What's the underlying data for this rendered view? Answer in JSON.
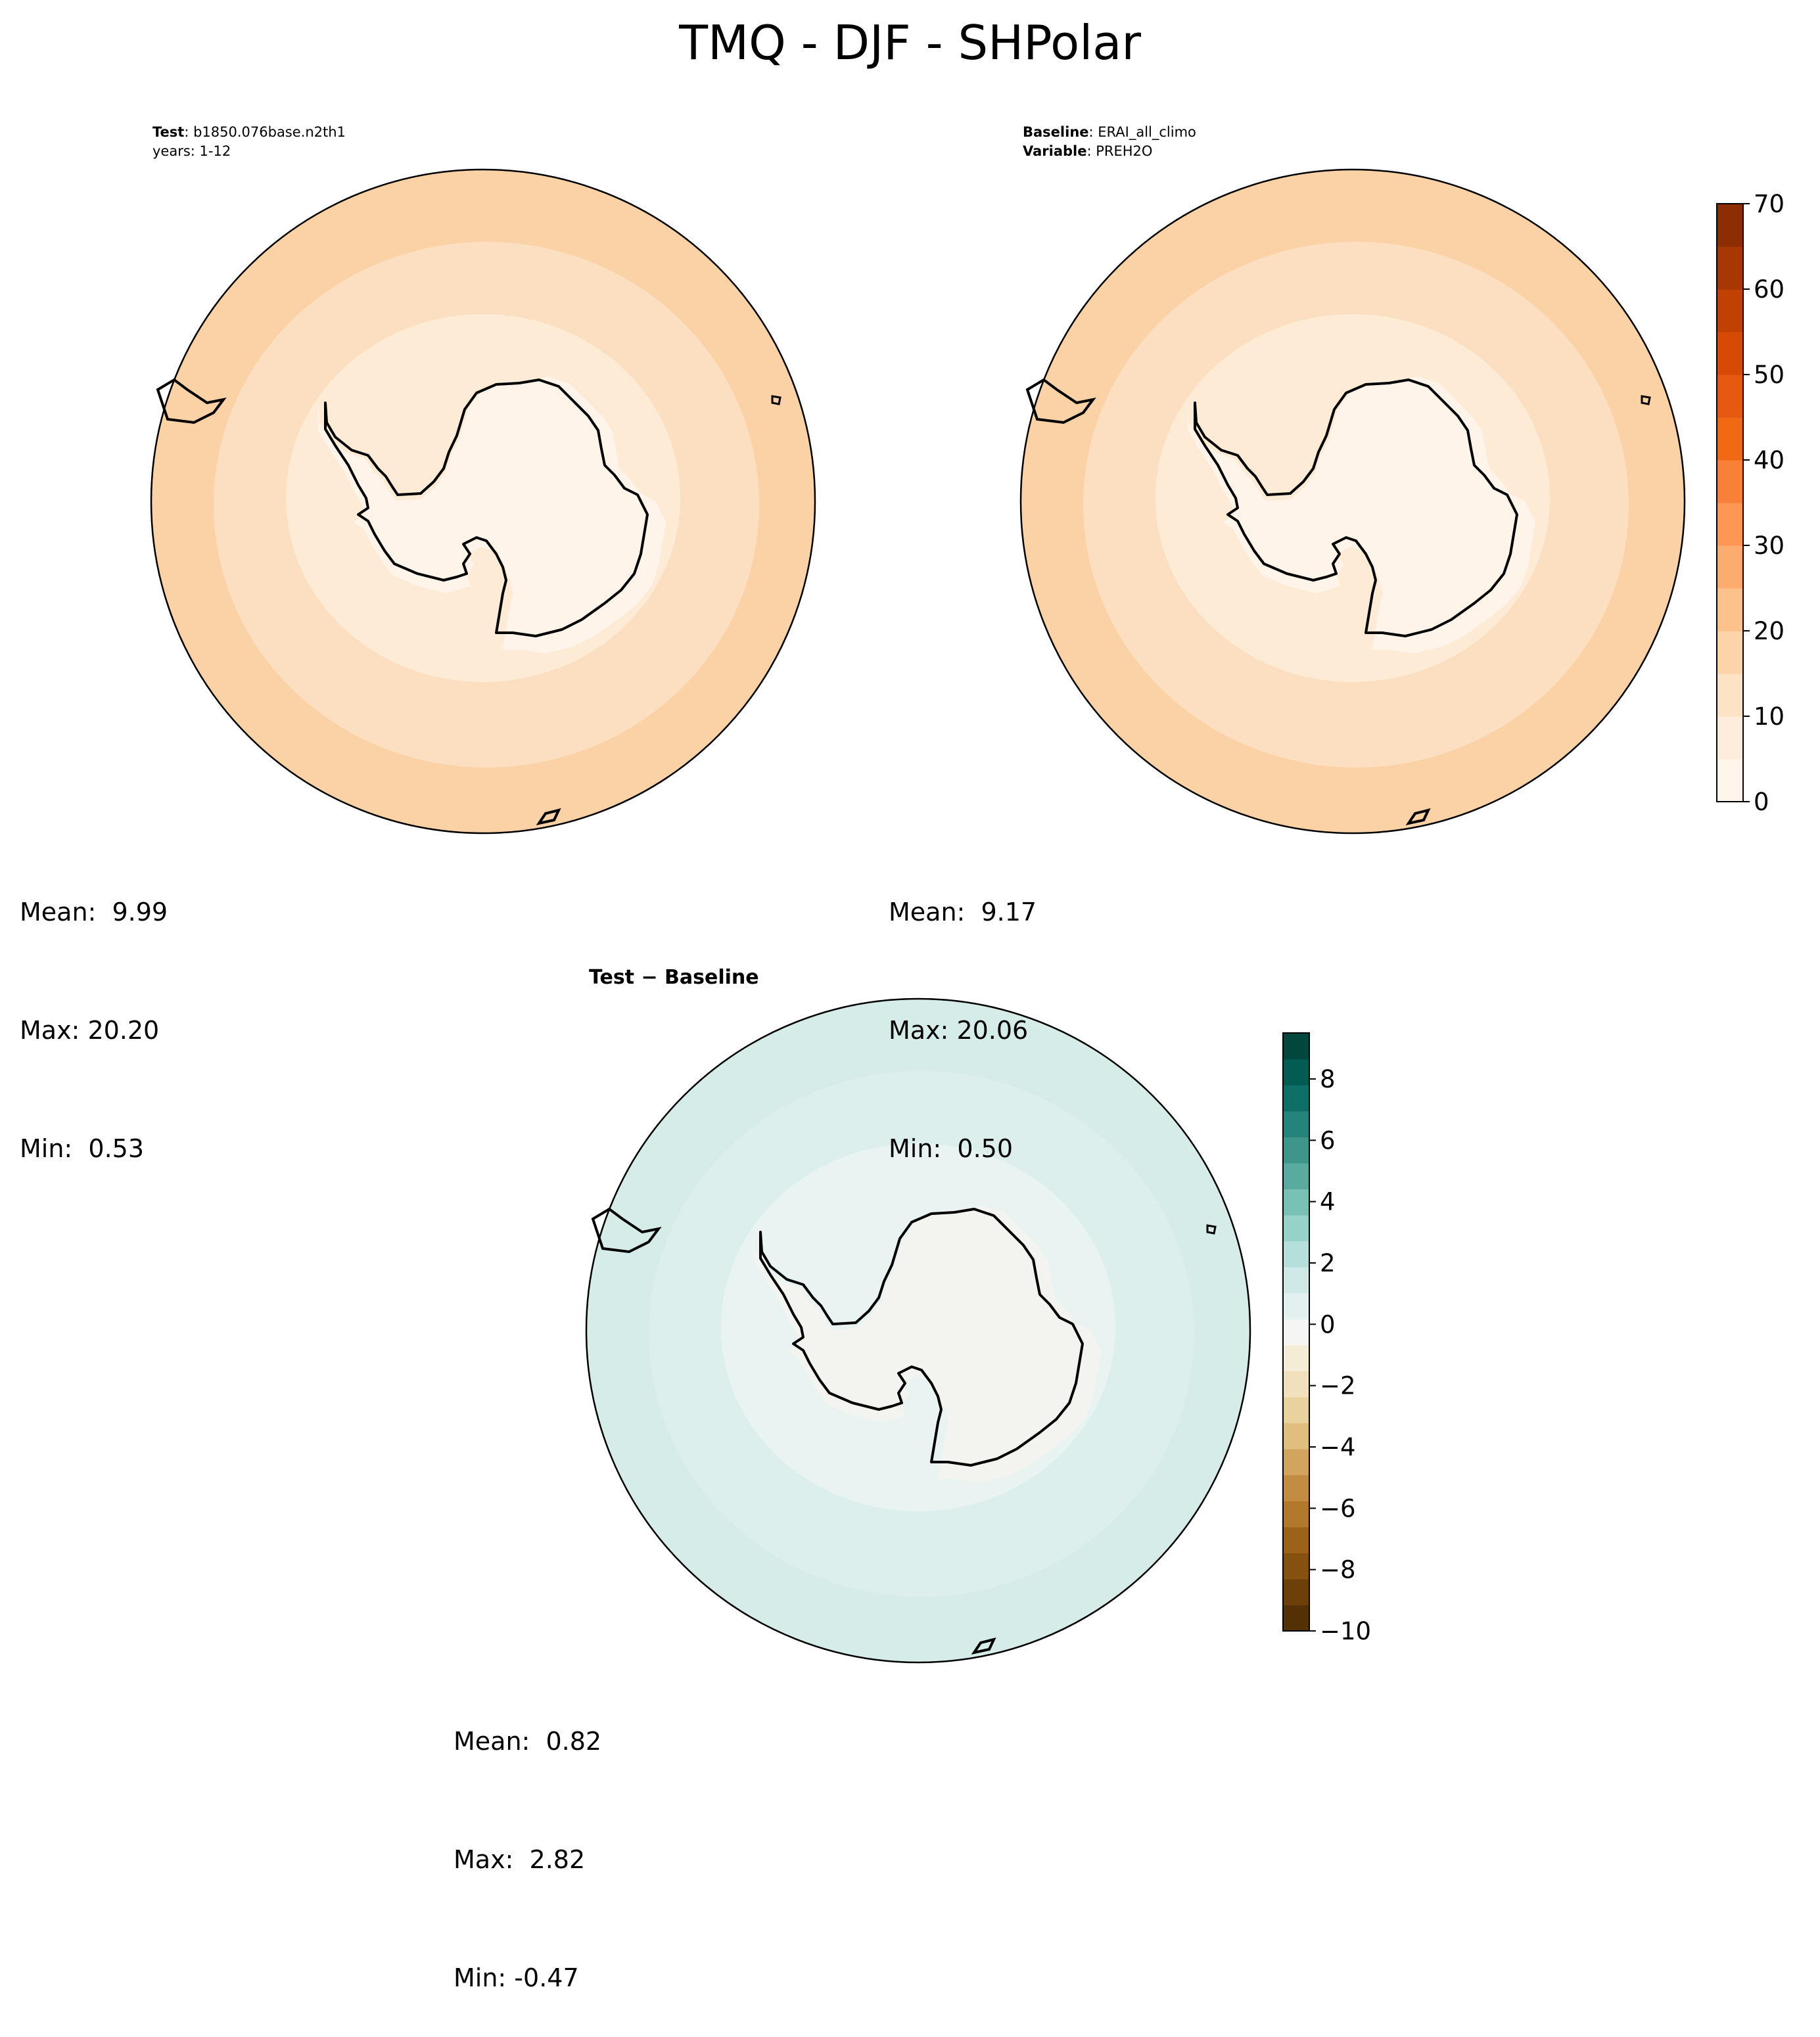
{
  "title": "TMQ - DJF - SHPolar",
  "panels": {
    "test": {
      "label_key": "Test",
      "label_value": ": b1850.076base.n2th1",
      "years": "years: 1-12",
      "mean": "Mean:  9.99",
      "max": "Max: 20.20",
      "min": "Min:  0.53",
      "zones": [
        "#fbd1a6",
        "#fcdfc0",
        "#fdebd6",
        "#fff4e9"
      ]
    },
    "baseline": {
      "label_key": "Baseline",
      "label_value": ": ERAI_all_climo",
      "variable_key": "Variable",
      "variable_value": ": PREH2O",
      "mean": "Mean:  9.17",
      "max": "Max: 20.06",
      "min": "Min:  0.50",
      "zones": [
        "#fbd1a6",
        "#fcdfc0",
        "#fdebd6",
        "#fff4e9"
      ]
    },
    "diff": {
      "title": "Test − Baseline",
      "mean": "Mean:  0.82",
      "max": "Max:  2.82",
      "min": "Min: -0.47",
      "zones": [
        "#d6ece8",
        "#dcefec",
        "#e9f4f2",
        "#f3f4f0"
      ]
    }
  },
  "colorbars": {
    "abs": {
      "ticks": [
        "0",
        "10",
        "20",
        "30",
        "40",
        "50",
        "60",
        "70"
      ],
      "range": [
        0,
        70
      ],
      "colors": [
        "#fff5eb",
        "#feeddc",
        "#fde2c6",
        "#fdd3a9",
        "#fdc18c",
        "#fdac6f",
        "#fd9753",
        "#f98039",
        "#f16913",
        "#e55910",
        "#d64a04",
        "#c04102",
        "#a73703",
        "#8c2d04"
      ]
    },
    "diff": {
      "ticks": [
        "8",
        "6",
        "4",
        "2",
        "0",
        "−2",
        "−4",
        "−6",
        "−8",
        "−10"
      ],
      "range": [
        -10,
        9.5
      ],
      "colors": [
        "#543005",
        "#6e4009",
        "#85510f",
        "#9c6219",
        "#b2782b",
        "#c28d42",
        "#d1a55d",
        "#dfbe7e",
        "#e9d29d",
        "#f0e0bb",
        "#f5ecd6",
        "#f5f5f3",
        "#e2f1ef",
        "#cfeae6",
        "#b4e0d9",
        "#96d2c8",
        "#79c1b5",
        "#5aab9f",
        "#3e968b",
        "#24837a",
        "#0e6f66",
        "#025c52",
        "#01473d"
      ]
    }
  }
}
